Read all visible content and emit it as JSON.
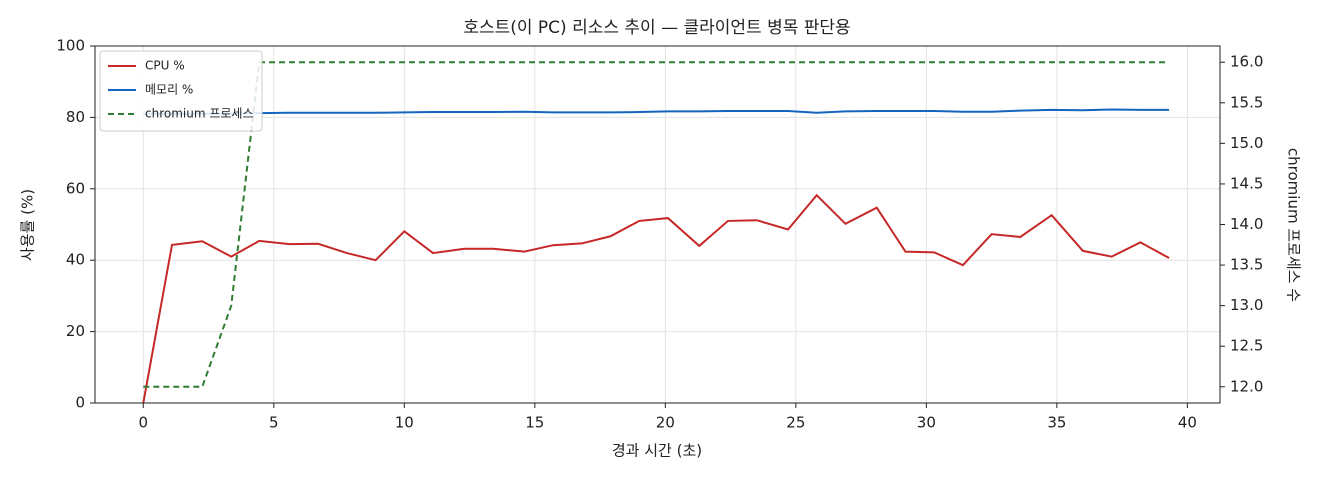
{
  "chart_data": {
    "type": "line",
    "title": "호스트(이 PC) 리소스 추이 — 클라이언트 병목 판단용",
    "x_label": "경과 시간 (초)",
    "y_label": "사용률 (%)",
    "y2_label": "chromium 프로세스 수",
    "x": [
      0,
      1.1,
      2.26,
      3.37,
      4.44,
      5.6,
      6.7,
      7.8,
      8.9,
      10.0,
      11.1,
      12.3,
      13.4,
      14.6,
      15.7,
      16.8,
      17.9,
      19.0,
      20.1,
      21.3,
      22.4,
      23.5,
      24.7,
      25.8,
      26.9,
      28.1,
      29.2,
      30.3,
      31.4,
      32.5,
      33.6,
      34.8,
      36.0,
      37.1,
      38.2,
      39.3
    ],
    "series": [
      {
        "name": "CPU %",
        "color": "#c62828",
        "linestyle": "solid",
        "values": [
          0,
          44.3,
          45.3,
          41,
          45.4,
          44.5,
          44.6,
          42,
          40,
          48.1,
          42,
          43.2,
          43.2,
          42.4,
          44.2,
          44.7,
          46.7,
          51,
          51.8,
          44,
          51,
          51.2,
          48.6,
          58.2,
          50.2,
          54.7,
          42.4,
          42.2,
          38.6,
          47.3,
          46.5,
          52.6,
          42.6,
          41,
          45,
          40.6
        ]
      },
      {
        "name": "메모리 %",
        "color": "#1565c0",
        "linestyle": "solid",
        "values": [
          81.0,
          81.0,
          81.0,
          81.1,
          81.2,
          81.3,
          81.3,
          81.3,
          81.3,
          81.4,
          81.5,
          81.5,
          81.5,
          81.6,
          81.4,
          81.4,
          81.4,
          81.5,
          81.7,
          81.7,
          81.8,
          81.8,
          81.8,
          81.3,
          81.7,
          81.8,
          81.8,
          81.8,
          81.6,
          81.6,
          81.9,
          82.1,
          82.0,
          82.2,
          82.1,
          82.1
        ]
      },
      {
        "name": "chromium 프로세스",
        "color": "#2e7d32",
        "linestyle": "dashed",
        "axis": "y2",
        "values": [
          12,
          12,
          12,
          13,
          16,
          16,
          16,
          16,
          16,
          16,
          16,
          16,
          16,
          16,
          16,
          16,
          16,
          16,
          16,
          16,
          16,
          16,
          16,
          16,
          16,
          16,
          16,
          16,
          16,
          16,
          16,
          16,
          16,
          16,
          16,
          16
        ]
      }
    ],
    "xlim": [
      -1.85,
      41.25
    ],
    "xticks": [
      0,
      5,
      10,
      15,
      20,
      25,
      30,
      35,
      40
    ],
    "ylim": [
      0,
      100
    ],
    "yticks": [
      0,
      20,
      40,
      60,
      80,
      100
    ],
    "y2lim": [
      11.8,
      16.2
    ],
    "y2ticks": [
      {
        "value": 12,
        "label": "12.0"
      },
      12.5,
      {
        "value": 13,
        "label": "13.0"
      },
      13.5,
      {
        "value": 14,
        "label": "14.0"
      },
      14.5,
      {
        "value": 15,
        "label": "15.0"
      },
      15.5,
      {
        "value": 16,
        "label": "16.0"
      }
    ],
    "grid": true,
    "legend": "upper-left"
  }
}
